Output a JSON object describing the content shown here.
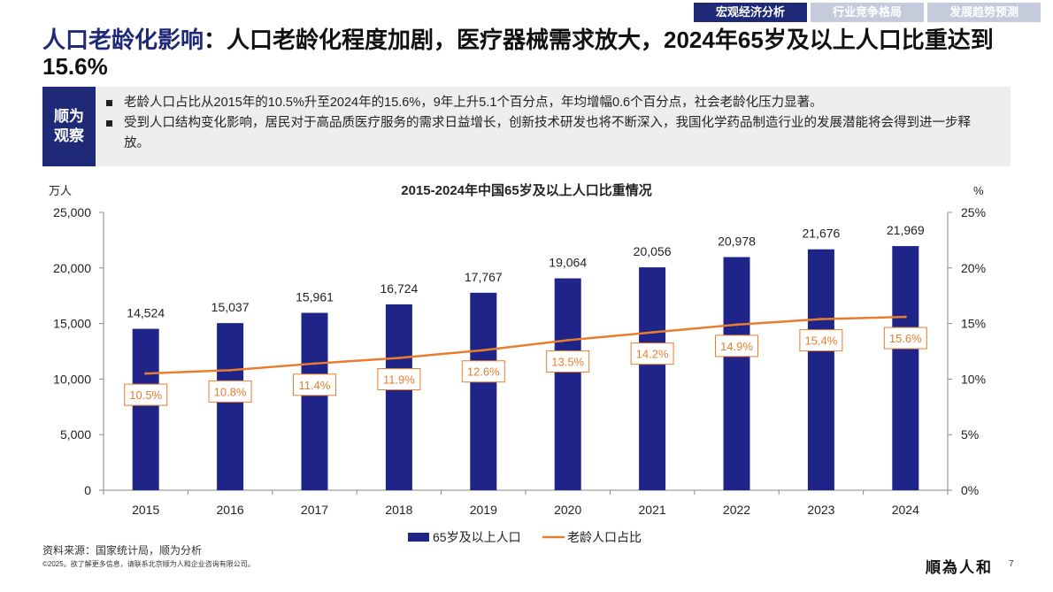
{
  "tabs": [
    {
      "label": "宏观经济分析",
      "active": true
    },
    {
      "label": "行业竞争格局",
      "active": false
    },
    {
      "label": "发展趋势预测",
      "active": false
    }
  ],
  "title": {
    "highlight": "人口老龄化影响",
    "rest": "：人口老龄化程度加剧，医疗器械需求放大，2024年65岁及以上人口比重达到15.6%"
  },
  "observation": {
    "label_line1": "顺为",
    "label_line2": "观察",
    "points": [
      "老龄人口占比从2015年的10.5%升至2024年的15.6%，9年上升5.1个百分点，年均增幅0.6个百分点，社会老龄化压力显著。",
      "受到人口结构变化影响，居民对于高品质医疗服务的需求日益增长，创新技术研发也将不断深入，我国化学药品制造行业的发展潜能将会得到进一步释放。"
    ]
  },
  "chart_data": {
    "type": "bar",
    "title": "2015-2024年中国65岁及以上人口比重情况",
    "categories": [
      "2015",
      "2016",
      "2017",
      "2018",
      "2019",
      "2020",
      "2021",
      "2022",
      "2023",
      "2024"
    ],
    "series": [
      {
        "name": "65岁及以上人口",
        "type": "bar",
        "axis": "left",
        "color": "#1e2488",
        "values": [
          14524,
          15037,
          15961,
          16724,
          17767,
          19064,
          20056,
          20978,
          21676,
          21969
        ],
        "labels": [
          "14,524",
          "15,037",
          "15,961",
          "16,724",
          "17,767",
          "19,064",
          "20,056",
          "20,978",
          "21,676",
          "21,969"
        ]
      },
      {
        "name": "老龄人口占比",
        "type": "line",
        "axis": "right",
        "color": "#e87d2e",
        "values": [
          10.5,
          10.8,
          11.4,
          11.9,
          12.6,
          13.5,
          14.2,
          14.9,
          15.4,
          15.6
        ],
        "labels": [
          "10.5%",
          "10.8%",
          "11.4%",
          "11.9%",
          "12.6%",
          "13.5%",
          "14.2%",
          "14.9%",
          "15.4%",
          "15.6%"
        ]
      }
    ],
    "y_left": {
      "unit": "万人",
      "min": 0,
      "max": 25000,
      "ticks": [
        "0",
        "5,000",
        "10,000",
        "15,000",
        "20,000",
        "25,000"
      ]
    },
    "y_right": {
      "unit": "%",
      "min": 0,
      "max": 25,
      "ticks": [
        "0%",
        "5%",
        "10%",
        "15%",
        "20%",
        "25%"
      ]
    },
    "legend_position": "bottom",
    "grid": false
  },
  "source": "资料来源：国家统计局，顺为分析",
  "copyright": "©2025。欲了解更多信息，请联系北京顺为人和企业咨询有限公司。",
  "logo_text": "順為人和",
  "page_number": "7"
}
